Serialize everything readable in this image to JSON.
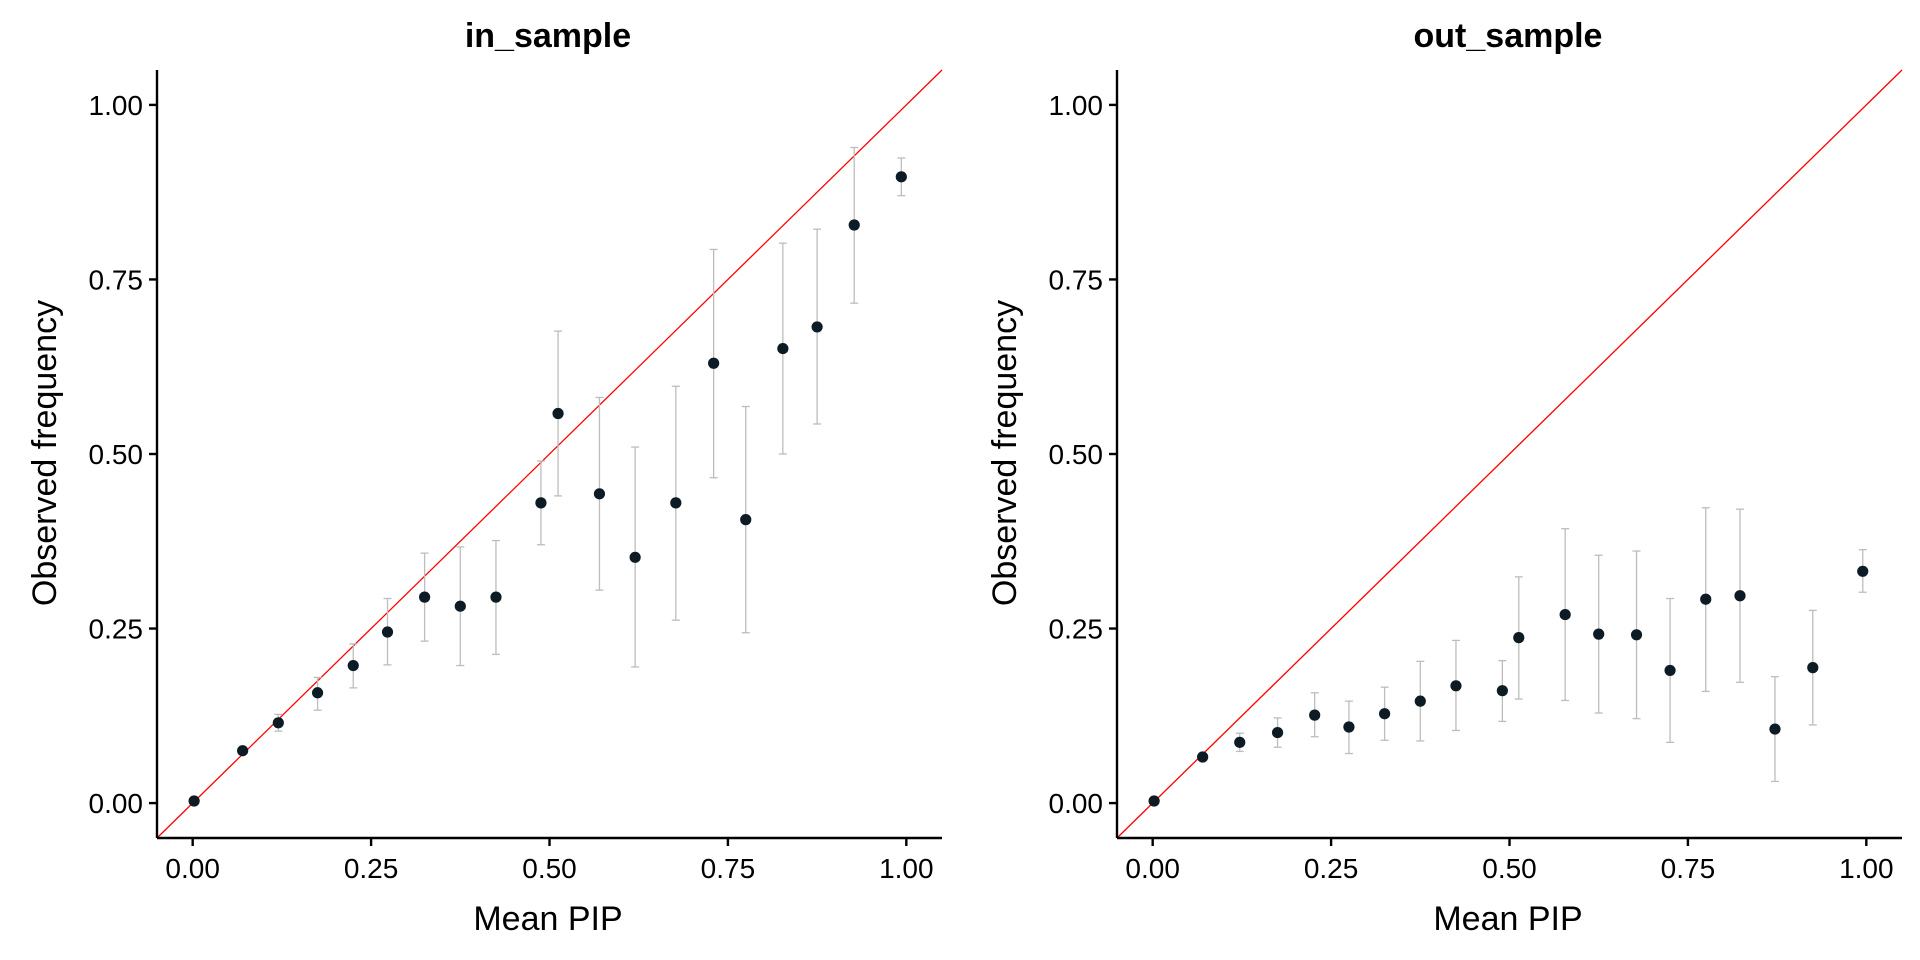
{
  "chart_data": [
    {
      "type": "scatter",
      "title": "in_sample",
      "xlabel": "Mean PIP",
      "ylabel": "Observed frequency",
      "xlim": [
        -0.05,
        1.05
      ],
      "ylim": [
        -0.05,
        1.05
      ],
      "xticks": [
        "0.00",
        "0.25",
        "0.50",
        "0.75",
        "1.00"
      ],
      "yticks": [
        "0.00",
        "0.25",
        "0.50",
        "0.75",
        "1.00"
      ],
      "grid": false,
      "reference_line": {
        "slope": 1,
        "intercept": 0,
        "color": "#ff0000"
      },
      "point_color": "#0d1b24",
      "errorbar_color": "#bdbdbd",
      "points": [
        {
          "x": 0.002,
          "y": 0.003,
          "lo": 0.003,
          "hi": 0.003
        },
        {
          "x": 0.07,
          "y": 0.075,
          "lo": 0.075,
          "hi": 0.075
        },
        {
          "x": 0.12,
          "y": 0.115,
          "lo": 0.103,
          "hi": 0.127
        },
        {
          "x": 0.175,
          "y": 0.158,
          "lo": 0.133,
          "hi": 0.18
        },
        {
          "x": 0.225,
          "y": 0.197,
          "lo": 0.165,
          "hi": 0.228
        },
        {
          "x": 0.273,
          "y": 0.245,
          "lo": 0.198,
          "hi": 0.293
        },
        {
          "x": 0.325,
          "y": 0.295,
          "lo": 0.232,
          "hi": 0.358
        },
        {
          "x": 0.375,
          "y": 0.282,
          "lo": 0.197,
          "hi": 0.367
        },
        {
          "x": 0.425,
          "y": 0.295,
          "lo": 0.213,
          "hi": 0.376
        },
        {
          "x": 0.488,
          "y": 0.43,
          "lo": 0.37,
          "hi": 0.49
        },
        {
          "x": 0.512,
          "y": 0.558,
          "lo": 0.44,
          "hi": 0.676
        },
        {
          "x": 0.57,
          "y": 0.443,
          "lo": 0.305,
          "hi": 0.581
        },
        {
          "x": 0.62,
          "y": 0.352,
          "lo": 0.195,
          "hi": 0.51
        },
        {
          "x": 0.677,
          "y": 0.43,
          "lo": 0.262,
          "hi": 0.597
        },
        {
          "x": 0.73,
          "y": 0.63,
          "lo": 0.466,
          "hi": 0.793
        },
        {
          "x": 0.775,
          "y": 0.406,
          "lo": 0.244,
          "hi": 0.568
        },
        {
          "x": 0.827,
          "y": 0.651,
          "lo": 0.5,
          "hi": 0.802
        },
        {
          "x": 0.875,
          "y": 0.682,
          "lo": 0.543,
          "hi": 0.822
        },
        {
          "x": 0.927,
          "y": 0.828,
          "lo": 0.716,
          "hi": 0.939
        },
        {
          "x": 0.993,
          "y": 0.897,
          "lo": 0.87,
          "hi": 0.924
        }
      ]
    },
    {
      "type": "scatter",
      "title": "out_sample",
      "xlabel": "Mean PIP",
      "ylabel": "Observed frequency",
      "xlim": [
        -0.05,
        1.05
      ],
      "ylim": [
        -0.05,
        1.05
      ],
      "xticks": [
        "0.00",
        "0.25",
        "0.50",
        "0.75",
        "1.00"
      ],
      "yticks": [
        "0.00",
        "0.25",
        "0.50",
        "0.75",
        "1.00"
      ],
      "grid": false,
      "reference_line": {
        "slope": 1,
        "intercept": 0,
        "color": "#ff0000"
      },
      "point_color": "#0d1b24",
      "errorbar_color": "#bdbdbd",
      "points": [
        {
          "x": 0.002,
          "y": 0.003,
          "lo": 0.003,
          "hi": 0.003
        },
        {
          "x": 0.07,
          "y": 0.066,
          "lo": 0.066,
          "hi": 0.066
        },
        {
          "x": 0.122,
          "y": 0.087,
          "lo": 0.074,
          "hi": 0.1
        },
        {
          "x": 0.175,
          "y": 0.101,
          "lo": 0.08,
          "hi": 0.122
        },
        {
          "x": 0.227,
          "y": 0.126,
          "lo": 0.095,
          "hi": 0.158
        },
        {
          "x": 0.275,
          "y": 0.109,
          "lo": 0.071,
          "hi": 0.146
        },
        {
          "x": 0.325,
          "y": 0.128,
          "lo": 0.09,
          "hi": 0.166
        },
        {
          "x": 0.375,
          "y": 0.146,
          "lo": 0.089,
          "hi": 0.203
        },
        {
          "x": 0.425,
          "y": 0.168,
          "lo": 0.104,
          "hi": 0.233
        },
        {
          "x": 0.49,
          "y": 0.161,
          "lo": 0.117,
          "hi": 0.204
        },
        {
          "x": 0.513,
          "y": 0.237,
          "lo": 0.149,
          "hi": 0.324
        },
        {
          "x": 0.578,
          "y": 0.27,
          "lo": 0.147,
          "hi": 0.393
        },
        {
          "x": 0.625,
          "y": 0.242,
          "lo": 0.129,
          "hi": 0.355
        },
        {
          "x": 0.678,
          "y": 0.241,
          "lo": 0.121,
          "hi": 0.361
        },
        {
          "x": 0.725,
          "y": 0.19,
          "lo": 0.087,
          "hi": 0.293
        },
        {
          "x": 0.775,
          "y": 0.292,
          "lo": 0.16,
          "hi": 0.423
        },
        {
          "x": 0.823,
          "y": 0.297,
          "lo": 0.173,
          "hi": 0.421
        },
        {
          "x": 0.872,
          "y": 0.106,
          "lo": 0.031,
          "hi": 0.181
        },
        {
          "x": 0.925,
          "y": 0.194,
          "lo": 0.112,
          "hi": 0.276
        },
        {
          "x": 0.995,
          "y": 0.332,
          "lo": 0.302,
          "hi": 0.363
        }
      ]
    }
  ]
}
